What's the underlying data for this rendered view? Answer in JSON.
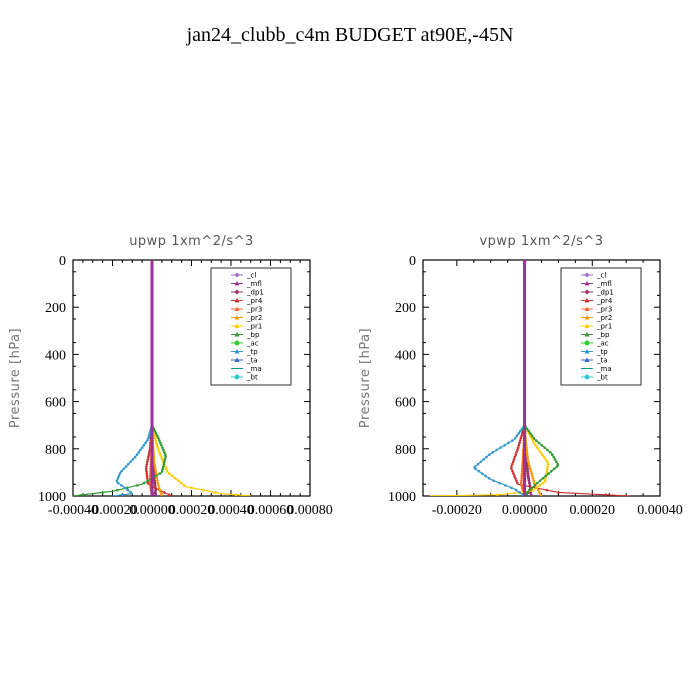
{
  "figure": {
    "title": "jan24_clubb_c4m  BUDGET at90E,-45N"
  },
  "legend_labels": [
    "_cl",
    "_mfl",
    "_dp1",
    "_pr4",
    "_pr3",
    "_pr2",
    "_pr1",
    "_bp",
    "_ac",
    "_tp",
    "_ta",
    "_ma",
    "_bt"
  ],
  "chart_data": [
    {
      "type": "line",
      "title": "upwp   1xm^2/s^3",
      "ylabel": "Pressure [hPa]",
      "xlabel": "",
      "xlim": [
        -0.0004,
        0.0008
      ],
      "ylim": [
        1000,
        0
      ],
      "x_ticks": [
        "-0.00040",
        "-0.00020",
        "0.00000",
        "0.00020",
        "0.00040",
        "0.00060",
        "0.00080"
      ],
      "y_ticks": [
        "0",
        "200",
        "400",
        "600",
        "800",
        "1000"
      ],
      "legend_position": "top-right",
      "series": [
        {
          "name": "_cl",
          "color": "#9966cc",
          "points": [
            [
              0,
              0
            ],
            [
              0,
              1000
            ]
          ]
        },
        {
          "name": "_mfl",
          "color": "#993399",
          "points": [
            [
              0,
              0
            ],
            [
              0,
              700
            ],
            [
              4e-06,
              800
            ],
            [
              1e-05,
              900
            ],
            [
              1.5e-05,
              950
            ],
            [
              2e-05,
              1000
            ]
          ]
        },
        {
          "name": "_dp1",
          "color": "#993366",
          "points": [
            [
              0,
              0
            ],
            [
              0,
              700
            ],
            [
              5e-06,
              850
            ],
            [
              1e-05,
              920
            ],
            [
              2e-05,
              980
            ],
            [
              0,
              1000
            ]
          ]
        },
        {
          "name": "_pr4",
          "color": "#cc3333",
          "points": [
            [
              0,
              0
            ],
            [
              0,
              700
            ],
            [
              -1e-05,
              800
            ],
            [
              -3e-05,
              880
            ],
            [
              -2e-05,
              950
            ],
            [
              5e-05,
              980
            ],
            [
              0.0001,
              1000
            ]
          ]
        },
        {
          "name": "_pr3",
          "color": "#ff6633",
          "points": [
            [
              0,
              0
            ],
            [
              0,
              720
            ],
            [
              -5e-06,
              850
            ],
            [
              -1e-05,
              950
            ],
            [
              0,
              1000
            ]
          ]
        },
        {
          "name": "_pr2",
          "color": "#ff9900",
          "points": [
            [
              0,
              0
            ],
            [
              0,
              720
            ],
            [
              1e-05,
              850
            ],
            [
              3e-05,
              950
            ],
            [
              5e-05,
              1000
            ]
          ]
        },
        {
          "name": "_pr1",
          "color": "#ffcc00",
          "points": [
            [
              0,
              0
            ],
            [
              0,
              700
            ],
            [
              3e-05,
              800
            ],
            [
              8e-05,
              900
            ],
            [
              0.00017,
              960
            ],
            [
              0.00035,
              990
            ],
            [
              0.0005,
              1000
            ]
          ]
        },
        {
          "name": "_bp",
          "color": "#339933",
          "points": [
            [
              0,
              0
            ],
            [
              0,
              700
            ],
            [
              3e-05,
              750
            ],
            [
              7e-05,
              830
            ],
            [
              5e-05,
              900
            ],
            [
              -5e-05,
              950
            ],
            [
              -0.0002,
              980
            ],
            [
              -0.0004,
              1000
            ]
          ]
        },
        {
          "name": "_ac",
          "color": "#33cc33",
          "points": [
            [
              0,
              0
            ],
            [
              0,
              1000
            ]
          ]
        },
        {
          "name": "_tp",
          "color": "#3399cc",
          "points": [
            [
              0,
              0
            ],
            [
              0,
              700
            ],
            [
              -2e-05,
              760
            ],
            [
              -8e-05,
              830
            ],
            [
              -0.00016,
              900
            ],
            [
              -0.00018,
              940
            ],
            [
              -0.00013,
              970
            ],
            [
              -0.0001,
              990
            ],
            [
              -0.0002,
              1000
            ]
          ]
        },
        {
          "name": "_ta",
          "color": "#3366cc",
          "points": [
            [
              0,
              0
            ],
            [
              0,
              1000
            ]
          ]
        },
        {
          "name": "_ma",
          "color": "#009999",
          "points": [
            [
              0,
              0
            ],
            [
              0,
              1000
            ]
          ]
        },
        {
          "name": "_bt",
          "color": "#33cccc",
          "points": [
            [
              0,
              0
            ],
            [
              0,
              1000
            ]
          ]
        }
      ]
    },
    {
      "type": "line",
      "title": "vpwp   1xm^2/s^3",
      "ylabel": "Pressure [hPa]",
      "xlabel": "",
      "xlim": [
        -0.0003,
        0.0004
      ],
      "ylim": [
        1000,
        0
      ],
      "x_ticks": [
        "-0.00020",
        "0.00000",
        "0.00020",
        "0.00040"
      ],
      "y_ticks": [
        "0",
        "200",
        "400",
        "600",
        "800",
        "1000"
      ],
      "legend_position": "top-right",
      "series": [
        {
          "name": "_cl",
          "color": "#9966cc",
          "points": [
            [
              0,
              0
            ],
            [
              0,
              1000
            ]
          ]
        },
        {
          "name": "_mfl",
          "color": "#993399",
          "points": [
            [
              0,
              0
            ],
            [
              0,
              700
            ],
            [
              4e-06,
              800
            ],
            [
              1e-05,
              900
            ],
            [
              1.5e-05,
              950
            ],
            [
              2e-05,
              1000
            ]
          ]
        },
        {
          "name": "_dp1",
          "color": "#993366",
          "points": [
            [
              0,
              0
            ],
            [
              0,
              700
            ],
            [
              5e-06,
              850
            ],
            [
              1e-05,
              920
            ],
            [
              2e-05,
              980
            ],
            [
              0,
              1000
            ]
          ]
        },
        {
          "name": "_pr4",
          "color": "#cc3333",
          "points": [
            [
              0,
              0
            ],
            [
              0,
              700
            ],
            [
              -2e-05,
              800
            ],
            [
              -4e-05,
              880
            ],
            [
              -2e-05,
              950
            ],
            [
              0.0001,
              985
            ],
            [
              0.00031,
              1000
            ]
          ]
        },
        {
          "name": "_pr3",
          "color": "#ff6633",
          "points": [
            [
              0,
              0
            ],
            [
              0,
              720
            ],
            [
              -5e-06,
              850
            ],
            [
              -1e-05,
              950
            ],
            [
              0,
              1000
            ]
          ]
        },
        {
          "name": "_pr2",
          "color": "#ff9900",
          "points": [
            [
              0,
              0
            ],
            [
              0,
              720
            ],
            [
              1e-05,
              850
            ],
            [
              3e-05,
              950
            ],
            [
              5e-05,
              1000
            ]
          ]
        },
        {
          "name": "_pr1",
          "color": "#ffcc00",
          "points": [
            [
              0,
              0
            ],
            [
              0,
              700
            ],
            [
              3e-05,
              780
            ],
            [
              7e-05,
              860
            ],
            [
              6e-05,
              940
            ],
            [
              2e-05,
              980
            ],
            [
              -8e-05,
              995
            ],
            [
              -0.00028,
              1000
            ]
          ]
        },
        {
          "name": "_bp",
          "color": "#339933",
          "points": [
            [
              0,
              0
            ],
            [
              0,
              700
            ],
            [
              3e-05,
              760
            ],
            [
              8e-05,
              820
            ],
            [
              0.0001,
              870
            ],
            [
              5e-05,
              930
            ],
            [
              1e-05,
              980
            ],
            [
              0,
              1000
            ]
          ]
        },
        {
          "name": "_ac",
          "color": "#33cc33",
          "points": [
            [
              0,
              0
            ],
            [
              0,
              1000
            ]
          ]
        },
        {
          "name": "_tp",
          "color": "#3399cc",
          "points": [
            [
              0,
              0
            ],
            [
              0,
              700
            ],
            [
              -3e-05,
              760
            ],
            [
              -0.0001,
              820
            ],
            [
              -0.00015,
              880
            ],
            [
              -0.0001,
              930
            ],
            [
              -3e-05,
              970
            ],
            [
              0,
              1000
            ]
          ]
        },
        {
          "name": "_ta",
          "color": "#3366cc",
          "points": [
            [
              0,
              0
            ],
            [
              0,
              1000
            ]
          ]
        },
        {
          "name": "_ma",
          "color": "#009999",
          "points": [
            [
              0,
              0
            ],
            [
              0,
              1000
            ]
          ]
        },
        {
          "name": "_bt",
          "color": "#33cccc",
          "points": [
            [
              0,
              0
            ],
            [
              0,
              1000
            ]
          ]
        }
      ]
    }
  ]
}
